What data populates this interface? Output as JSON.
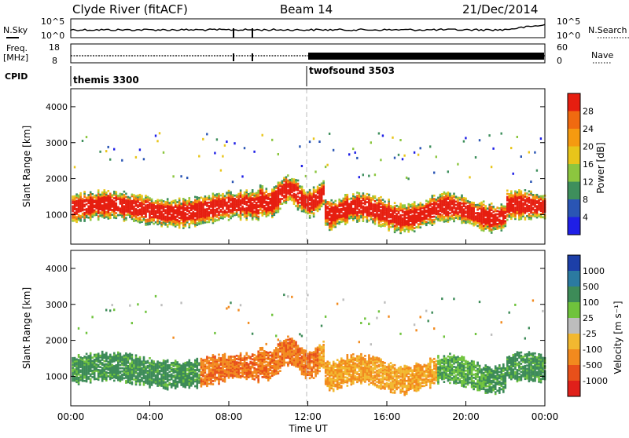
{
  "header": {
    "station": "Clyde River (fitACF)",
    "beam": "Beam 14",
    "date": "21/Dec/2014"
  },
  "top_panels": {
    "nsky_label": "N.Sky",
    "nsearch_label": "N.Search",
    "freq_label_1": "Freq.",
    "freq_label_2": "[MHz]",
    "nave_label": "Nave",
    "cpid_label": "CPID",
    "noise_left_ticks": [
      "10^5",
      "10^0"
    ],
    "noise_right_ticks": [
      "10^5",
      "10^0"
    ],
    "freq_ticks": [
      "18",
      "8"
    ],
    "nave_ticks": [
      "60",
      "0"
    ]
  },
  "cpid_segments": [
    {
      "label": "themis 3300",
      "start_hour": 0
    },
    {
      "label": "twofsound 3503",
      "start_hour": 12
    }
  ],
  "chart_data": [
    {
      "type": "heatmap",
      "parameter": "Power",
      "ylabel": "Slant Range [km]",
      "xlabel": "Time UT",
      "xlim_hours": [
        0,
        24
      ],
      "ylim": [
        180,
        4500
      ],
      "yticks": [
        "1000",
        "2000",
        "3000",
        "4000"
      ],
      "xticks": [
        "00:00",
        "04:00",
        "08:00",
        "12:00",
        "16:00",
        "20:00",
        "00:00"
      ],
      "colorbar_label": "Power [dB]",
      "colorbar_ticks": [
        "4",
        "8",
        "12",
        "16",
        "20",
        "24",
        "28"
      ],
      "colors": [
        "#1f1fe6",
        "#2a55b4",
        "#3e8f5c",
        "#8cc63f",
        "#e8c51a",
        "#f59a10",
        "#f06a10",
        "#e61e10"
      ]
    },
    {
      "type": "heatmap",
      "parameter": "Velocity",
      "ylabel": "Slant Range [km]",
      "xlabel": "Time UT",
      "xlim_hours": [
        0,
        24
      ],
      "ylim": [
        180,
        4500
      ],
      "yticks": [
        "1000",
        "2000",
        "3000",
        "4000"
      ],
      "xticks": [
        "00:00",
        "04:00",
        "08:00",
        "12:00",
        "16:00",
        "20:00",
        "00:00"
      ],
      "colorbar_label": "Velocity [m s⁻¹]",
      "colorbar_ticks": [
        "1000",
        "500",
        "100",
        "25",
        "-25",
        "-100",
        "-500",
        "-1000"
      ],
      "colors": [
        "#1c3fa8",
        "#2b7aa0",
        "#3d8b58",
        "#6fc33c",
        "#bdbdbd",
        "#f2b830",
        "#f28a1e",
        "#e8501a",
        "#e0201a"
      ]
    }
  ]
}
